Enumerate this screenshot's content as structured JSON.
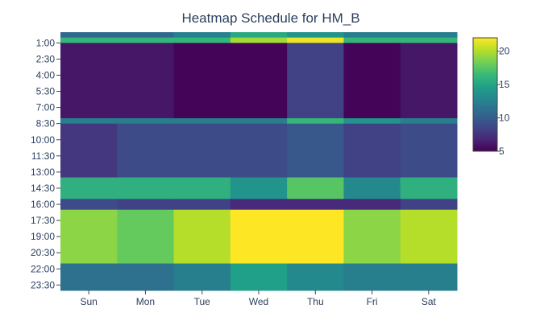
{
  "chart_data": {
    "type": "heatmap",
    "title": "Heatmap Schedule for  HM_B",
    "xlabel": "",
    "ylabel": "",
    "x_categories": [
      "Sun",
      "Mon",
      "Tue",
      "Wed",
      "Thu",
      "Fri",
      "Sat"
    ],
    "y_tick_labels": [
      "1:00",
      "2:30",
      "4:00",
      "5:30",
      "7:00",
      "8:30",
      "10:00",
      "11:30",
      "13:00",
      "14:30",
      "16:00",
      "17:30",
      "19:00",
      "20:30",
      "22:00",
      "23:30"
    ],
    "y_range": [
      "0:00",
      "24:00"
    ],
    "y_step_minutes": 30,
    "colorscale": "Viridis",
    "colorbar": {
      "min": 5,
      "max": 22,
      "ticks": [
        5,
        10,
        15,
        20
      ]
    },
    "blocks": [
      {
        "from": "0:00",
        "to": "0:30",
        "values": [
          10.7,
          10.7,
          12.5,
          15.2,
          13.8,
          12.3,
          12.3
        ]
      },
      {
        "from": "0:30",
        "to": "1:00",
        "values": [
          16.3,
          16.3,
          16.3,
          19.6,
          21.5,
          16.3,
          16.3
        ]
      },
      {
        "from": "1:00",
        "to": "8:00",
        "values": [
          6.0,
          6.0,
          5.2,
          5.2,
          8.3,
          5.2,
          6.0
        ]
      },
      {
        "from": "8:00",
        "to": "8:30",
        "values": [
          12.3,
          12.3,
          12.3,
          12.3,
          16.3,
          13.8,
          12.3
        ]
      },
      {
        "from": "8:30",
        "to": "13:30",
        "values": [
          7.7,
          8.9,
          8.9,
          8.9,
          9.7,
          8.3,
          8.9
        ]
      },
      {
        "from": "13:30",
        "to": "15:30",
        "values": [
          15.8,
          15.8,
          15.8,
          13.8,
          17.5,
          13.0,
          15.8
        ]
      },
      {
        "from": "15:30",
        "to": "16:30",
        "values": [
          8.9,
          8.3,
          8.3,
          7.0,
          7.0,
          7.0,
          8.3
        ]
      },
      {
        "from": "16:30",
        "to": "21:30",
        "values": [
          19.0,
          17.9,
          20.1,
          22.0,
          22.0,
          19.0,
          20.1
        ]
      },
      {
        "from": "21:30",
        "to": "24:00",
        "values": [
          11.3,
          11.3,
          12.3,
          14.5,
          13.0,
          12.3,
          12.3
        ]
      }
    ]
  }
}
